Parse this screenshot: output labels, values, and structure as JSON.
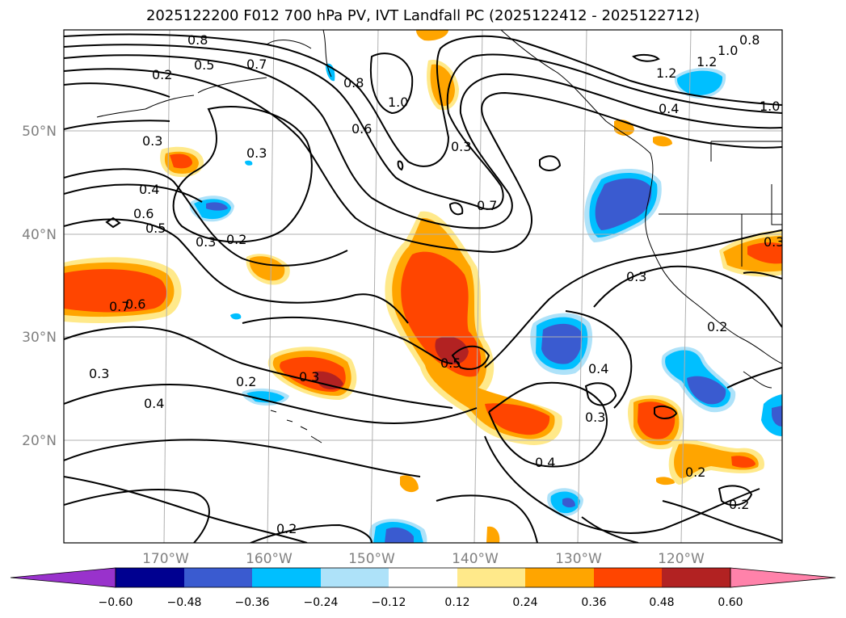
{
  "title": "2025122200 F012 700 hPa PV, IVT Landfall PC (2025122412 - 2025122712)",
  "map": {
    "lat_labels": [
      "50°N",
      "40°N",
      "30°N",
      "20°N"
    ],
    "lon_labels": [
      "170°W",
      "160°W",
      "150°W",
      "140°W",
      "130°W",
      "120°W"
    ],
    "contour_labels": [
      "0.8",
      "0.5",
      "0.7",
      "0.2",
      "0.8",
      "0.6",
      "1.0",
      "0.3",
      "0.3",
      "0.4",
      "0.5",
      "0.6",
      "0.3",
      "0.2",
      "0.7",
      "0.3",
      "0.7",
      "0.6",
      "0.3",
      "0.5",
      "0.2",
      "0.4",
      "0.3",
      "0.4",
      "0.4",
      "0.3",
      "0.2",
      "0.8",
      "1.0",
      "1.2",
      "1.2",
      "0.4",
      "1.0",
      "0.3",
      "0.3",
      "0.2",
      "0.2",
      "0.2"
    ],
    "colors": {
      "neg_060": "#9932cc",
      "neg_048": "#000090",
      "neg_036": "#3a5bd0",
      "neg_024": "#00bfff",
      "neg_012": "#aee2f9",
      "zero": "#ffffff",
      "pos_012": "#ffe98a",
      "pos_024": "#ffa500",
      "pos_036": "#ff4500",
      "pos_048": "#b22222",
      "pos_060": "#ff82aa"
    }
  },
  "colorbar": {
    "ticks": [
      "−0.60",
      "−0.48",
      "−0.36",
      "−0.24",
      "−0.12",
      "0.12",
      "0.24",
      "0.36",
      "0.48",
      "0.60"
    ]
  }
}
